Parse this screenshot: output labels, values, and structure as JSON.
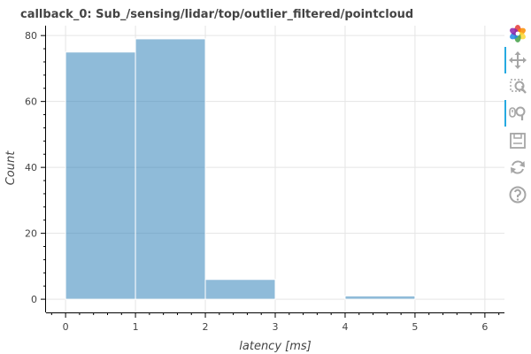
{
  "chart_data": {
    "type": "bar",
    "title": "callback_0: Sub_/sensing/lidar/top/outlier_filtered/pointcloud",
    "xlabel": "latency [ms]",
    "ylabel": "Count",
    "bins": [
      {
        "x0": 0,
        "x1": 1,
        "count": 75
      },
      {
        "x0": 1,
        "x1": 2,
        "count": 79
      },
      {
        "x0": 2,
        "x1": 3,
        "count": 6
      },
      {
        "x0": 3,
        "x1": 4,
        "count": 0
      },
      {
        "x0": 4,
        "x1": 5,
        "count": 1
      }
    ],
    "xlim": [
      -0.28,
      6.28
    ],
    "ylim": [
      -4,
      83
    ],
    "x_ticks": [
      0,
      1,
      2,
      3,
      4,
      5,
      6
    ],
    "y_ticks": [
      0,
      20,
      40,
      60,
      80
    ],
    "grid": true,
    "bar_color": "#1f77b4",
    "bar_opacity": 0.5
  },
  "toolbar": {
    "items": [
      {
        "name": "bokeh-logo-icon",
        "active": false
      },
      {
        "name": "pan-icon",
        "active": true
      },
      {
        "name": "box-zoom-icon",
        "active": false
      },
      {
        "name": "wheel-zoom-icon",
        "active": true
      },
      {
        "name": "save-icon",
        "active": false
      },
      {
        "name": "reset-icon",
        "active": false
      },
      {
        "name": "help-icon",
        "active": false
      }
    ],
    "accent_color": "#26aae1",
    "icon_color": "#a6a6a6"
  }
}
